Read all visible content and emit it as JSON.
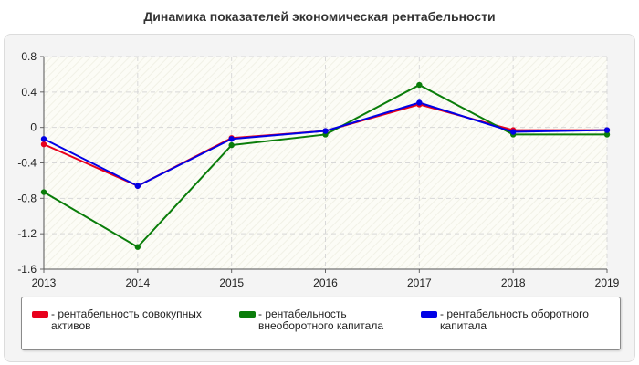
{
  "title": "Динамика показателей экономическая рентабельности",
  "chart_data": {
    "type": "line",
    "title": "Динамика показателей экономическая рентабельности",
    "xlabel": "",
    "ylabel": "",
    "categories": [
      "2013",
      "2014",
      "2015",
      "2016",
      "2017",
      "2018",
      "2019"
    ],
    "ylim": [
      -1.6,
      0.8
    ],
    "yticks": [
      "0.8",
      "0.4",
      "0",
      "-0.4",
      "-0.8",
      "-1.2",
      "-1.6"
    ],
    "grid": true,
    "legend_position": "bottom",
    "series": [
      {
        "name": "рентабельность совокупных активов",
        "legend_text": "- рентабельность совокупных активов",
        "color": "#e8001c",
        "values": [
          -0.19,
          -0.66,
          -0.12,
          -0.04,
          0.26,
          -0.03,
          -0.03
        ]
      },
      {
        "name": "рентабельность внеоборотного капитала",
        "legend_text": "- рентабельность внеоборотного капитала",
        "color": "#0a7d0a",
        "values": [
          -0.73,
          -1.35,
          -0.2,
          -0.08,
          0.48,
          -0.08,
          -0.08
        ]
      },
      {
        "name": "рентабельность оборотного капитала",
        "legend_text": "- рентабельность оборотного капитала",
        "color": "#0000e6",
        "values": [
          -0.13,
          -0.66,
          -0.13,
          -0.04,
          0.28,
          -0.05,
          -0.03
        ]
      }
    ]
  }
}
